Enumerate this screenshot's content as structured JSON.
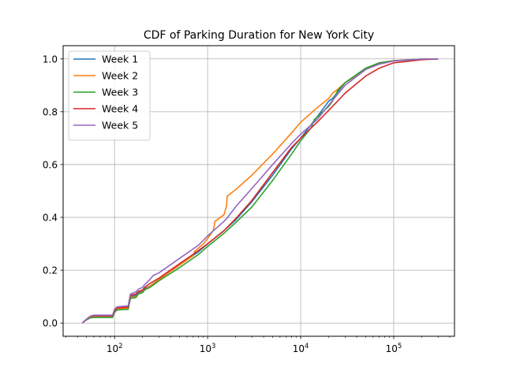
{
  "chart_data": {
    "type": "line",
    "title": "CDF of Parking Duration for New York City",
    "xlabel": "",
    "ylabel": "",
    "xscale": "log",
    "xlim": [
      28,
      450000
    ],
    "ylim": [
      -0.05,
      1.05
    ],
    "grid": true,
    "legend_position": "top-left",
    "x_ticks": [
      {
        "value": 100,
        "base": "10",
        "exp": "2"
      },
      {
        "value": 1000,
        "base": "10",
        "exp": "3"
      },
      {
        "value": 10000,
        "base": "10",
        "exp": "4"
      },
      {
        "value": 100000,
        "base": "10",
        "exp": "5"
      }
    ],
    "y_ticks": [
      {
        "value": 0.0,
        "label": "0.0"
      },
      {
        "value": 0.2,
        "label": "0.2"
      },
      {
        "value": 0.4,
        "label": "0.4"
      },
      {
        "value": 0.6,
        "label": "0.6"
      },
      {
        "value": 0.8,
        "label": "0.8"
      },
      {
        "value": 1.0,
        "label": "1.0"
      }
    ],
    "series": [
      {
        "name": "Week 1",
        "color": "#1f77b4",
        "points": [
          [
            45,
            0
          ],
          [
            50,
            0.015
          ],
          [
            55,
            0.026
          ],
          [
            60,
            0.028
          ],
          [
            95,
            0.028
          ],
          [
            100,
            0.045
          ],
          [
            105,
            0.055
          ],
          [
            110,
            0.058
          ],
          [
            140,
            0.06
          ],
          [
            148,
            0.1
          ],
          [
            170,
            0.105
          ],
          [
            180,
            0.115
          ],
          [
            200,
            0.12
          ],
          [
            210,
            0.13
          ],
          [
            240,
            0.14
          ],
          [
            300,
            0.165
          ],
          [
            500,
            0.22
          ],
          [
            800,
            0.27
          ],
          [
            1000,
            0.3
          ],
          [
            1500,
            0.35
          ],
          [
            2000,
            0.39
          ],
          [
            3000,
            0.46
          ],
          [
            5000,
            0.56
          ],
          [
            8000,
            0.66
          ],
          [
            10000,
            0.7
          ],
          [
            15000,
            0.78
          ],
          [
            20000,
            0.84
          ],
          [
            22000,
            0.85
          ],
          [
            30000,
            0.91
          ],
          [
            50000,
            0.96
          ],
          [
            70000,
            0.985
          ],
          [
            100000,
            0.993
          ],
          [
            200000,
            0.999
          ],
          [
            300000,
            1.0
          ]
        ]
      },
      {
        "name": "Week 2",
        "color": "#ff7f0e",
        "points": [
          [
            45,
            0
          ],
          [
            50,
            0.015
          ],
          [
            55,
            0.024
          ],
          [
            60,
            0.026
          ],
          [
            95,
            0.026
          ],
          [
            100,
            0.045
          ],
          [
            105,
            0.053
          ],
          [
            110,
            0.055
          ],
          [
            140,
            0.057
          ],
          [
            148,
            0.097
          ],
          [
            170,
            0.1
          ],
          [
            180,
            0.11
          ],
          [
            200,
            0.118
          ],
          [
            210,
            0.125
          ],
          [
            240,
            0.14
          ],
          [
            300,
            0.165
          ],
          [
            500,
            0.22
          ],
          [
            700,
            0.255
          ],
          [
            720,
            0.27
          ],
          [
            900,
            0.3
          ],
          [
            1000,
            0.32
          ],
          [
            1150,
            0.35
          ],
          [
            1200,
            0.385
          ],
          [
            1500,
            0.41
          ],
          [
            1600,
            0.445
          ],
          [
            1620,
            0.48
          ],
          [
            2000,
            0.505
          ],
          [
            3000,
            0.56
          ],
          [
            5000,
            0.64
          ],
          [
            8000,
            0.72
          ],
          [
            10000,
            0.76
          ],
          [
            15000,
            0.815
          ],
          [
            20000,
            0.85
          ],
          [
            22000,
            0.87
          ],
          [
            25000,
            0.885
          ],
          [
            30000,
            0.91
          ],
          [
            50000,
            0.96
          ],
          [
            70000,
            0.985
          ],
          [
            100000,
            0.993
          ],
          [
            200000,
            0.999
          ],
          [
            300000,
            1.0
          ]
        ]
      },
      {
        "name": "Week 3",
        "color": "#2ca02c",
        "points": [
          [
            45,
            0
          ],
          [
            50,
            0.012
          ],
          [
            55,
            0.02
          ],
          [
            60,
            0.021
          ],
          [
            95,
            0.021
          ],
          [
            100,
            0.04
          ],
          [
            105,
            0.048
          ],
          [
            110,
            0.05
          ],
          [
            140,
            0.052
          ],
          [
            148,
            0.093
          ],
          [
            170,
            0.097
          ],
          [
            180,
            0.11
          ],
          [
            200,
            0.115
          ],
          [
            210,
            0.125
          ],
          [
            240,
            0.135
          ],
          [
            300,
            0.16
          ],
          [
            500,
            0.21
          ],
          [
            800,
            0.26
          ],
          [
            1000,
            0.29
          ],
          [
            1500,
            0.34
          ],
          [
            2000,
            0.38
          ],
          [
            3000,
            0.44
          ],
          [
            5000,
            0.54
          ],
          [
            8000,
            0.64
          ],
          [
            10000,
            0.69
          ],
          [
            13000,
            0.74
          ],
          [
            14000,
            0.77
          ],
          [
            20000,
            0.82
          ],
          [
            22000,
            0.84
          ],
          [
            25000,
            0.88
          ],
          [
            30000,
            0.91
          ],
          [
            50000,
            0.965
          ],
          [
            70000,
            0.985
          ],
          [
            100000,
            0.993
          ],
          [
            200000,
            0.999
          ],
          [
            300000,
            1.0
          ]
        ]
      },
      {
        "name": "Week 4",
        "color": "#d62728",
        "points": [
          [
            45,
            0
          ],
          [
            50,
            0.014
          ],
          [
            55,
            0.025
          ],
          [
            60,
            0.027
          ],
          [
            95,
            0.027
          ],
          [
            100,
            0.047
          ],
          [
            105,
            0.055
          ],
          [
            110,
            0.058
          ],
          [
            140,
            0.06
          ],
          [
            148,
            0.105
          ],
          [
            170,
            0.11
          ],
          [
            180,
            0.12
          ],
          [
            200,
            0.125
          ],
          [
            210,
            0.135
          ],
          [
            240,
            0.15
          ],
          [
            300,
            0.17
          ],
          [
            500,
            0.225
          ],
          [
            800,
            0.275
          ],
          [
            1000,
            0.3
          ],
          [
            1500,
            0.35
          ],
          [
            2000,
            0.395
          ],
          [
            3000,
            0.465
          ],
          [
            5000,
            0.57
          ],
          [
            8000,
            0.665
          ],
          [
            10000,
            0.7
          ],
          [
            15000,
            0.76
          ],
          [
            20000,
            0.805
          ],
          [
            30000,
            0.87
          ],
          [
            50000,
            0.935
          ],
          [
            70000,
            0.965
          ],
          [
            100000,
            0.985
          ],
          [
            200000,
            0.997
          ],
          [
            300000,
            1.0
          ]
        ]
      },
      {
        "name": "Week 5",
        "color": "#9467bd",
        "points": [
          [
            45,
            0
          ],
          [
            50,
            0.014
          ],
          [
            55,
            0.026
          ],
          [
            60,
            0.03
          ],
          [
            95,
            0.03
          ],
          [
            100,
            0.052
          ],
          [
            105,
            0.06
          ],
          [
            110,
            0.062
          ],
          [
            140,
            0.065
          ],
          [
            148,
            0.11
          ],
          [
            170,
            0.118
          ],
          [
            180,
            0.128
          ],
          [
            200,
            0.135
          ],
          [
            210,
            0.145
          ],
          [
            240,
            0.165
          ],
          [
            260,
            0.18
          ],
          [
            300,
            0.19
          ],
          [
            500,
            0.245
          ],
          [
            800,
            0.295
          ],
          [
            1000,
            0.33
          ],
          [
            1500,
            0.385
          ],
          [
            1600,
            0.395
          ],
          [
            2000,
            0.44
          ],
          [
            3000,
            0.51
          ],
          [
            5000,
            0.6
          ],
          [
            8000,
            0.68
          ],
          [
            10000,
            0.715
          ],
          [
            15000,
            0.77
          ],
          [
            20000,
            0.825
          ],
          [
            30000,
            0.9
          ],
          [
            50000,
            0.96
          ],
          [
            70000,
            0.98
          ],
          [
            100000,
            0.992
          ],
          [
            200000,
            0.999
          ],
          [
            300000,
            1.0
          ]
        ]
      }
    ]
  }
}
